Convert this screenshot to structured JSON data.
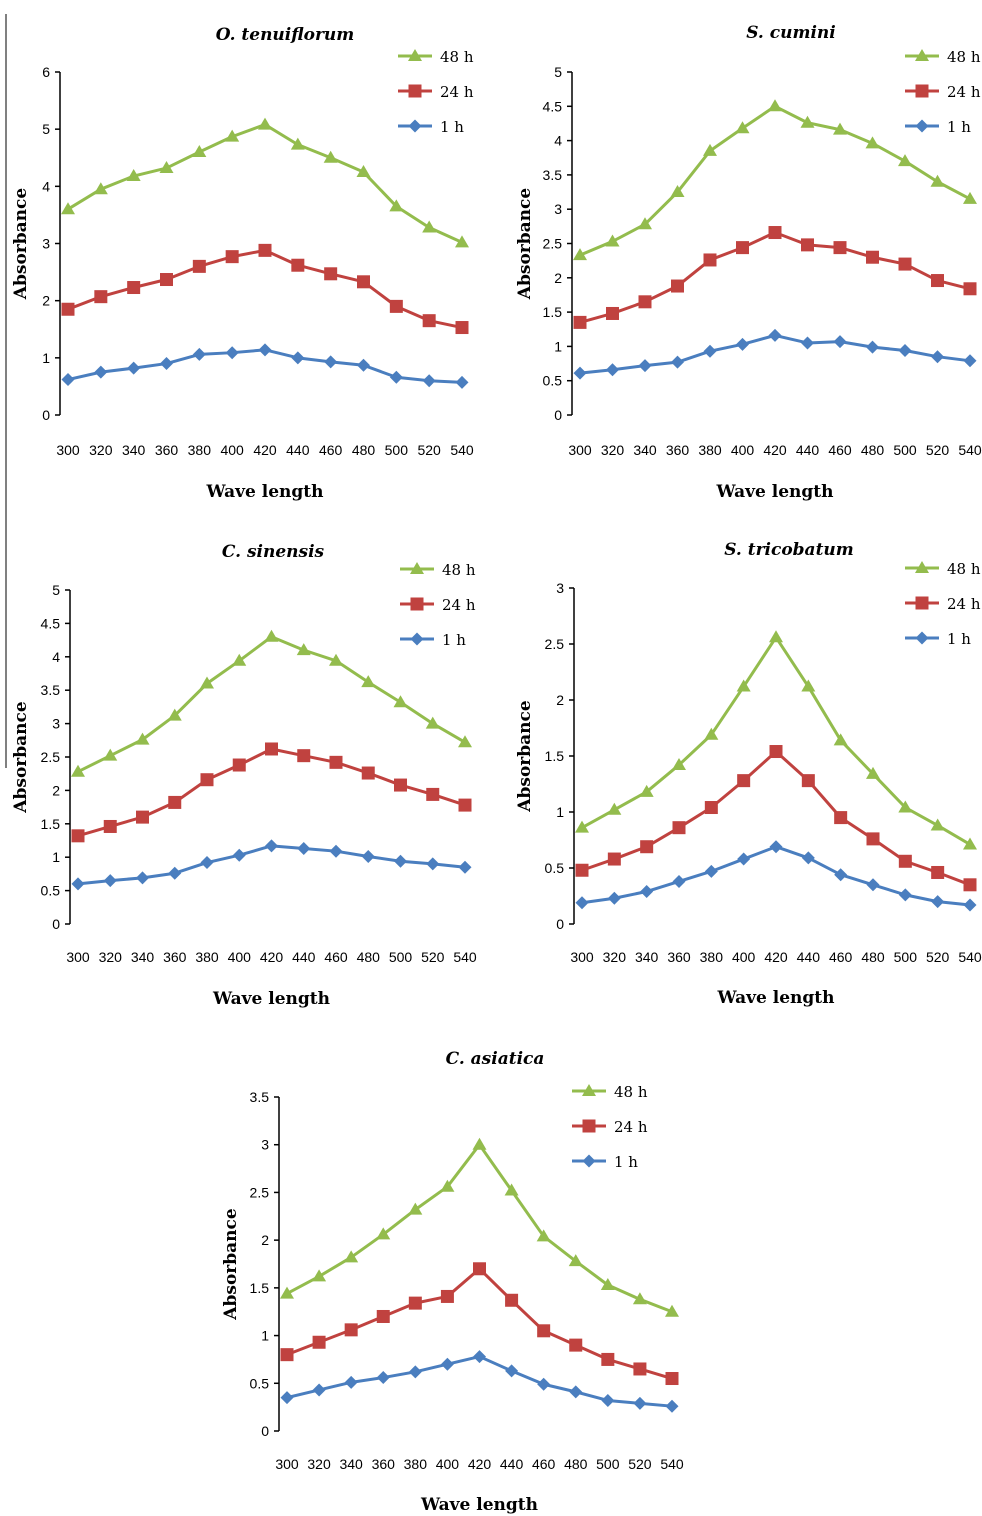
{
  "colors": {
    "48 h": "#93bc4d",
    "24 h": "#c0423f",
    "1 h": "#4a7ebf"
  },
  "chart_data": [
    {
      "type": "line",
      "title": "O. tenuiflorum",
      "xlabel": "Wave length",
      "ylabel": "Absorbance",
      "x": [
        300,
        320,
        340,
        360,
        380,
        400,
        420,
        440,
        460,
        480,
        500,
        520,
        540
      ],
      "ylim": [
        0,
        6
      ],
      "yticks": [
        "0",
        "1",
        "2",
        "3",
        "4",
        "5",
        "6"
      ],
      "series": [
        {
          "name": "48 h",
          "marker": "triangle",
          "values": [
            3.6,
            3.95,
            4.18,
            4.32,
            4.6,
            4.87,
            5.08,
            4.73,
            4.5,
            4.25,
            3.65,
            3.28,
            3.02
          ]
        },
        {
          "name": "24 h",
          "marker": "square",
          "values": [
            1.85,
            2.07,
            2.23,
            2.37,
            2.6,
            2.77,
            2.88,
            2.62,
            2.47,
            2.33,
            1.9,
            1.65,
            1.53
          ]
        },
        {
          "name": "1 h",
          "marker": "diamond",
          "values": [
            0.62,
            0.75,
            0.82,
            0.9,
            1.06,
            1.09,
            1.14,
            1.0,
            0.93,
            0.87,
            0.66,
            0.6,
            0.57
          ]
        }
      ]
    },
    {
      "type": "line",
      "title": "S. cumini",
      "xlabel": "Wave length",
      "ylabel": "Absorbance",
      "x": [
        300,
        320,
        340,
        360,
        380,
        400,
        420,
        440,
        460,
        480,
        500,
        520,
        540
      ],
      "ylim": [
        0,
        5
      ],
      "yticks": [
        "0",
        "0.5",
        "1",
        "1.5",
        "2",
        "2.5",
        "3",
        "3.5",
        "4",
        "4.5",
        "5"
      ],
      "series": [
        {
          "name": "48 h",
          "marker": "triangle",
          "values": [
            2.33,
            2.53,
            2.78,
            3.25,
            3.85,
            4.18,
            4.5,
            4.26,
            4.16,
            3.96,
            3.7,
            3.4,
            3.15
          ]
        },
        {
          "name": "24 h",
          "marker": "square",
          "values": [
            1.35,
            1.48,
            1.65,
            1.88,
            2.26,
            2.44,
            2.66,
            2.48,
            2.44,
            2.3,
            2.2,
            1.96,
            1.84
          ]
        },
        {
          "name": "1 h",
          "marker": "diamond",
          "values": [
            0.61,
            0.66,
            0.72,
            0.77,
            0.93,
            1.03,
            1.16,
            1.05,
            1.07,
            0.99,
            0.94,
            0.85,
            0.79
          ]
        }
      ]
    },
    {
      "type": "line",
      "title": "C. sinensis",
      "xlabel": "Wave length",
      "ylabel": "Absorbance",
      "x": [
        300,
        320,
        340,
        360,
        380,
        400,
        420,
        440,
        460,
        480,
        500,
        520,
        540
      ],
      "ylim": [
        0,
        5
      ],
      "yticks": [
        "0",
        "0.5",
        "1",
        "1.5",
        "2",
        "2.5",
        "3",
        "3.5",
        "4",
        "4.5",
        "5"
      ],
      "series": [
        {
          "name": "48 h",
          "marker": "triangle",
          "values": [
            2.28,
            2.52,
            2.76,
            3.12,
            3.6,
            3.94,
            4.3,
            4.1,
            3.94,
            3.62,
            3.32,
            3.0,
            2.72
          ]
        },
        {
          "name": "24 h",
          "marker": "square",
          "values": [
            1.32,
            1.46,
            1.6,
            1.82,
            2.16,
            2.38,
            2.62,
            2.52,
            2.42,
            2.26,
            2.08,
            1.94,
            1.78
          ]
        },
        {
          "name": "1 h",
          "marker": "diamond",
          "values": [
            0.6,
            0.65,
            0.69,
            0.76,
            0.92,
            1.03,
            1.17,
            1.13,
            1.09,
            1.01,
            0.94,
            0.9,
            0.85
          ]
        }
      ]
    },
    {
      "type": "line",
      "title": "S. tricobatum",
      "xlabel": "Wave length",
      "ylabel": "Absorbance",
      "x": [
        300,
        320,
        340,
        360,
        380,
        400,
        420,
        440,
        460,
        480,
        500,
        520,
        540
      ],
      "ylim": [
        0,
        3
      ],
      "yticks": [
        "0",
        "0.5",
        "1",
        "1.5",
        "2",
        "2.5",
        "3"
      ],
      "series": [
        {
          "name": "48 h",
          "marker": "triangle",
          "values": [
            0.86,
            1.02,
            1.18,
            1.42,
            1.69,
            2.12,
            2.56,
            2.12,
            1.64,
            1.34,
            1.04,
            0.88,
            0.71
          ]
        },
        {
          "name": "24 h",
          "marker": "square",
          "values": [
            0.48,
            0.58,
            0.69,
            0.86,
            1.04,
            1.28,
            1.54,
            1.28,
            0.95,
            0.76,
            0.56,
            0.46,
            0.35
          ]
        },
        {
          "name": "1 h",
          "marker": "diamond",
          "values": [
            0.19,
            0.23,
            0.29,
            0.38,
            0.47,
            0.58,
            0.69,
            0.59,
            0.44,
            0.35,
            0.26,
            0.2,
            0.17
          ]
        }
      ]
    },
    {
      "type": "line",
      "title": "C. asiatica",
      "xlabel": "Wave length",
      "ylabel": "Absorbance",
      "x": [
        300,
        320,
        340,
        360,
        380,
        400,
        420,
        440,
        460,
        480,
        500,
        520,
        540
      ],
      "ylim": [
        0,
        3.5
      ],
      "yticks": [
        "0",
        "0.5",
        "1",
        "1.5",
        "2",
        "2.5",
        "3",
        "3.5"
      ],
      "series": [
        {
          "name": "48 h",
          "marker": "triangle",
          "values": [
            1.44,
            1.62,
            1.82,
            2.06,
            2.32,
            2.56,
            3.0,
            2.52,
            2.04,
            1.78,
            1.53,
            1.38,
            1.25
          ]
        },
        {
          "name": "24 h",
          "marker": "square",
          "values": [
            0.8,
            0.93,
            1.06,
            1.2,
            1.34,
            1.41,
            1.7,
            1.37,
            1.05,
            0.9,
            0.75,
            0.65,
            0.55
          ]
        },
        {
          "name": "1 h",
          "marker": "diamond",
          "values": [
            0.35,
            0.43,
            0.51,
            0.56,
            0.62,
            0.7,
            0.78,
            0.63,
            0.49,
            0.41,
            0.32,
            0.29,
            0.26
          ]
        }
      ]
    }
  ]
}
